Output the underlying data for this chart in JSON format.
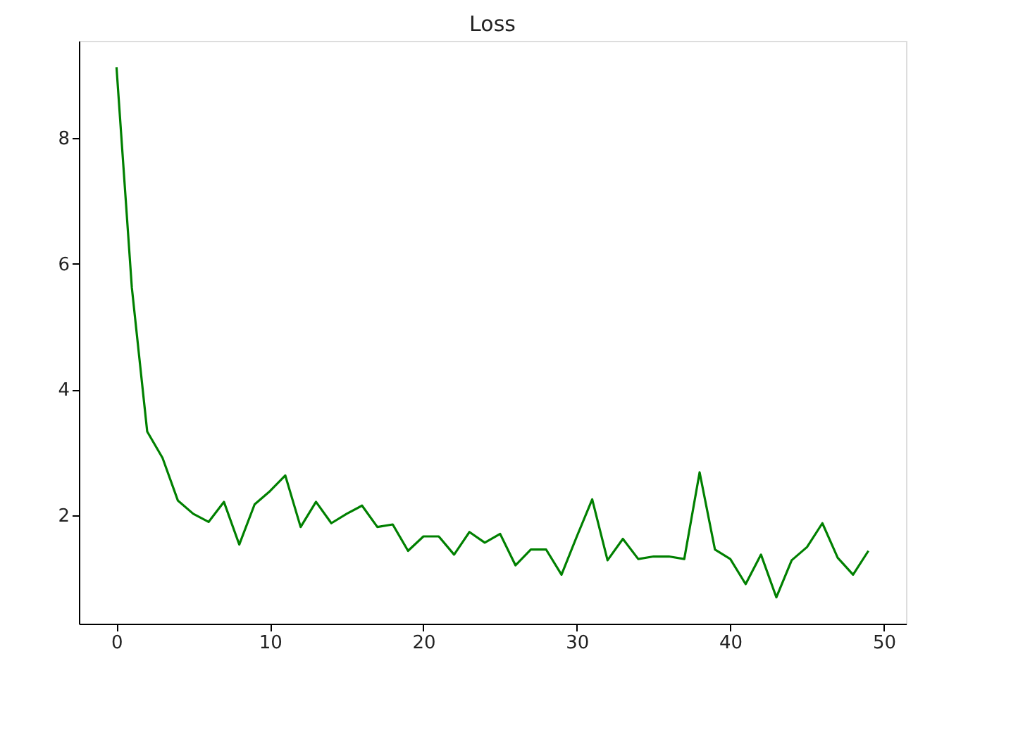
{
  "chart_data": {
    "type": "line",
    "title": "Loss",
    "x": [
      0,
      1,
      2,
      3,
      4,
      5,
      6,
      7,
      8,
      9,
      10,
      11,
      12,
      13,
      14,
      15,
      16,
      17,
      18,
      19,
      20,
      21,
      22,
      23,
      24,
      25,
      26,
      27,
      28,
      29,
      30,
      31,
      32,
      33,
      34,
      35,
      36,
      37,
      38,
      39,
      40,
      41,
      42,
      43,
      44,
      45,
      46,
      47,
      48,
      49
    ],
    "series": [
      {
        "color": "#008000",
        "values": [
          9.13,
          5.62,
          3.33,
          2.91,
          2.23,
          2.02,
          1.89,
          2.21,
          1.53,
          2.17,
          2.38,
          2.63,
          1.81,
          2.21,
          1.87,
          2.02,
          2.15,
          1.81,
          1.85,
          1.43,
          1.66,
          1.66,
          1.37,
          1.73,
          1.56,
          1.7,
          1.2,
          1.45,
          1.45,
          1.05,
          1.66,
          2.25,
          1.28,
          1.62,
          1.3,
          1.34,
          1.34,
          1.3,
          2.68,
          1.45,
          1.3,
          0.9,
          1.37,
          0.69,
          1.28,
          1.49,
          1.87,
          1.32,
          1.05,
          1.43
        ]
      }
    ],
    "xlim": [
      -2.45,
      51.45
    ],
    "xticks": [
      0,
      10,
      20,
      30,
      40,
      50
    ],
    "ylim": [
      0.27,
      9.55
    ],
    "yticks": [
      2,
      4,
      6,
      8
    ],
    "grid": false,
    "marker": "none",
    "line_style": "solid"
  }
}
